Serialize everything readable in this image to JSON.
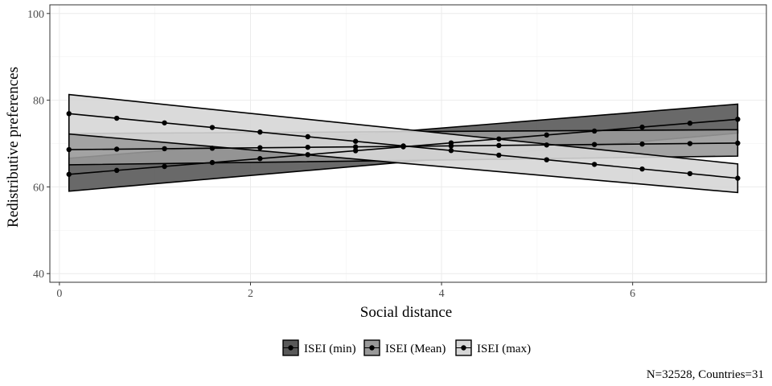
{
  "chart_data": {
    "type": "line",
    "title": "",
    "xlabel": "Social distance",
    "ylabel": "Redistributive preferences",
    "xlim": [
      -0.1,
      7.4
    ],
    "ylim": [
      38,
      102
    ],
    "x_ticks": [
      0,
      2,
      4,
      6
    ],
    "y_ticks": [
      40,
      60,
      80,
      100
    ],
    "grid": true,
    "legend_position": "bottom",
    "caption": "N=32528, Countries=31",
    "x": [
      0.1,
      0.6,
      1.1,
      1.6,
      2.1,
      2.6,
      3.1,
      3.6,
      4.1,
      4.6,
      5.1,
      5.6,
      6.1,
      6.6,
      7.1
    ],
    "series": [
      {
        "name": "ISEI (min)",
        "fill": "#595959",
        "y_start": 62.9,
        "y_end": 75.6,
        "lower_start": 59.0,
        "lower_end": 72.4,
        "upper_start": 66.6,
        "upper_end": 79.1
      },
      {
        "name": "ISEI (Mean)",
        "fill": "#999999",
        "y_start": 68.6,
        "y_end": 70.1,
        "lower_start": 65.1,
        "lower_end": 67.1,
        "upper_start": 72.3,
        "upper_end": 73.2
      },
      {
        "name": "ISEI (max)",
        "fill": "#d6d6d6",
        "y_start": 76.9,
        "y_end": 62.0,
        "lower_start": 72.2,
        "lower_end": 58.7,
        "upper_start": 81.3,
        "upper_end": 65.3
      }
    ]
  }
}
